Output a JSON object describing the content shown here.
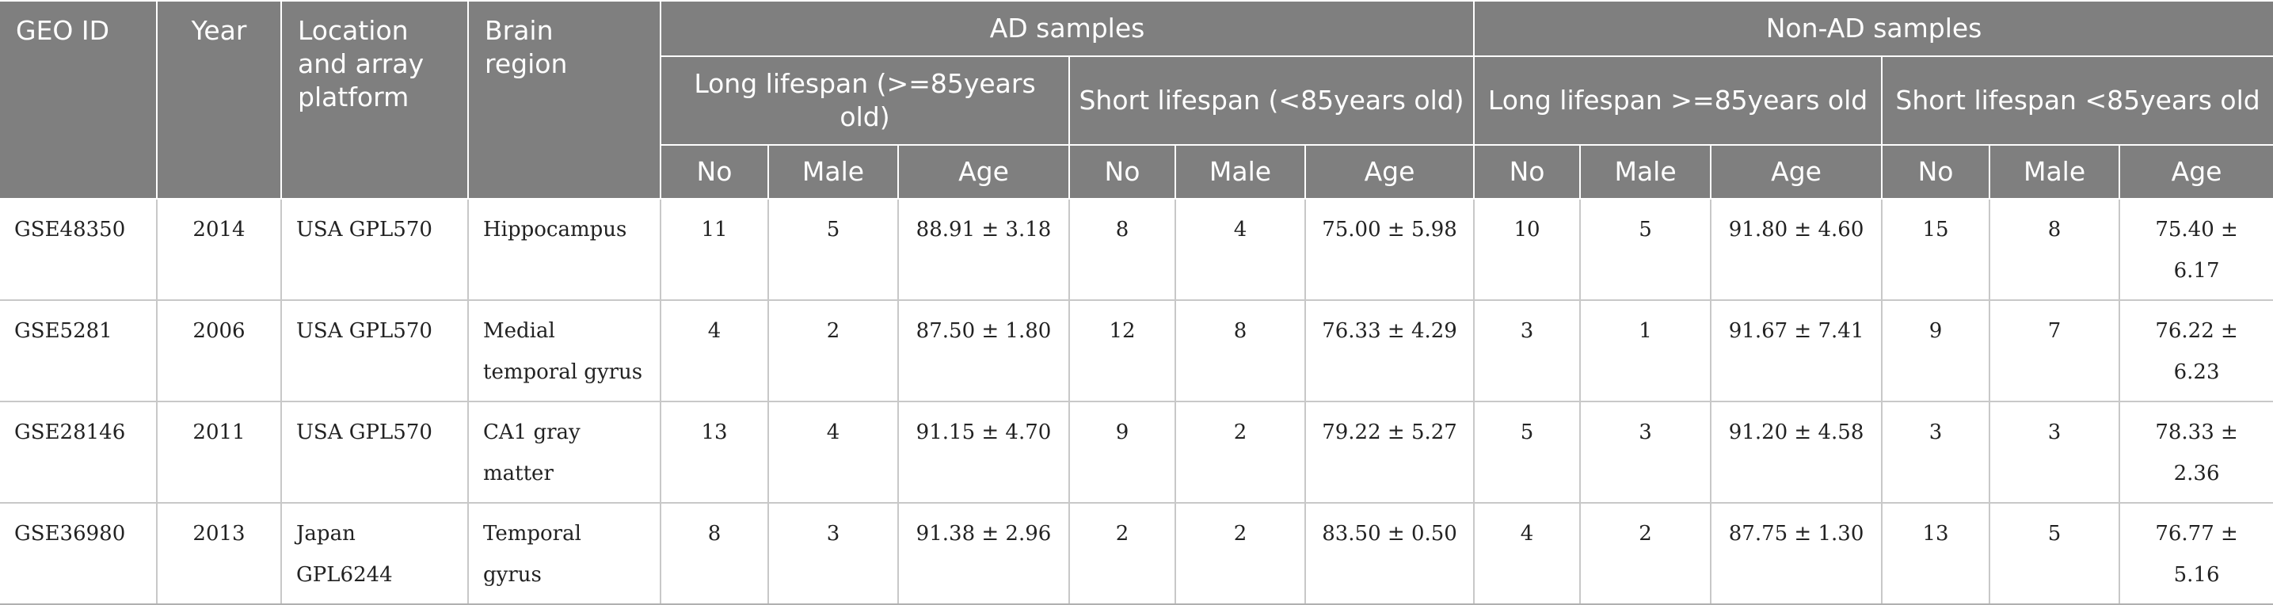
{
  "header": {
    "geo_id": "GEO ID",
    "year": "Year",
    "location": "Location and array platform",
    "brain_region": "Brain region",
    "ad_samples": "AD samples",
    "non_ad_samples": "Non-AD samples",
    "ad_long": "Long lifespan (>=85years old)",
    "ad_short": "Short lifespan (<85years old)",
    "nonad_long": "Long lifespan >=85years old",
    "nonad_short": "Short lifespan <85years old",
    "sub": [
      "No",
      "Male",
      "Age",
      "No",
      "Male",
      "Age",
      "No",
      "Male",
      "Age",
      "No",
      "Male",
      "Age"
    ]
  },
  "rows": [
    {
      "id": "GSE48350",
      "year": "2014",
      "location": "USA GPL570",
      "region": "Hippocampus",
      "cells": [
        "11",
        "5",
        "88.91 ± 3.18",
        "8",
        "4",
        "75.00 ± 5.98",
        "10",
        "5",
        "91.80 ± 4.60",
        "15",
        "8",
        "75.40 ± 6.17"
      ]
    },
    {
      "id": "GSE5281",
      "year": "2006",
      "location": "USA GPL570",
      "region": "Medial temporal gyrus",
      "cells": [
        "4",
        "2",
        "87.50 ± 1.80",
        "12",
        "8",
        "76.33 ± 4.29",
        "3",
        "1",
        "91.67 ± 7.41",
        "9",
        "7",
        "76.22 ± 6.23"
      ]
    },
    {
      "id": "GSE28146",
      "year": "2011",
      "location": "USA GPL570",
      "region": "CA1 gray matter",
      "cells": [
        "13",
        "4",
        "91.15 ± 4.70",
        "9",
        "2",
        "79.22 ± 5.27",
        "5",
        "3",
        "91.20 ± 4.58",
        "3",
        "3",
        "78.33 ± 2.36"
      ]
    },
    {
      "id": "GSE36980",
      "year": "2013",
      "location": "Japan GPL6244",
      "region": "Temporal gyrus",
      "cells": [
        "8",
        "3",
        "91.38 ± 2.96",
        "2",
        "2",
        "83.50 ± 0.50",
        "4",
        "2",
        "87.75 ± 1.30",
        "13",
        "5",
        "76.77 ± 5.16"
      ]
    }
  ]
}
